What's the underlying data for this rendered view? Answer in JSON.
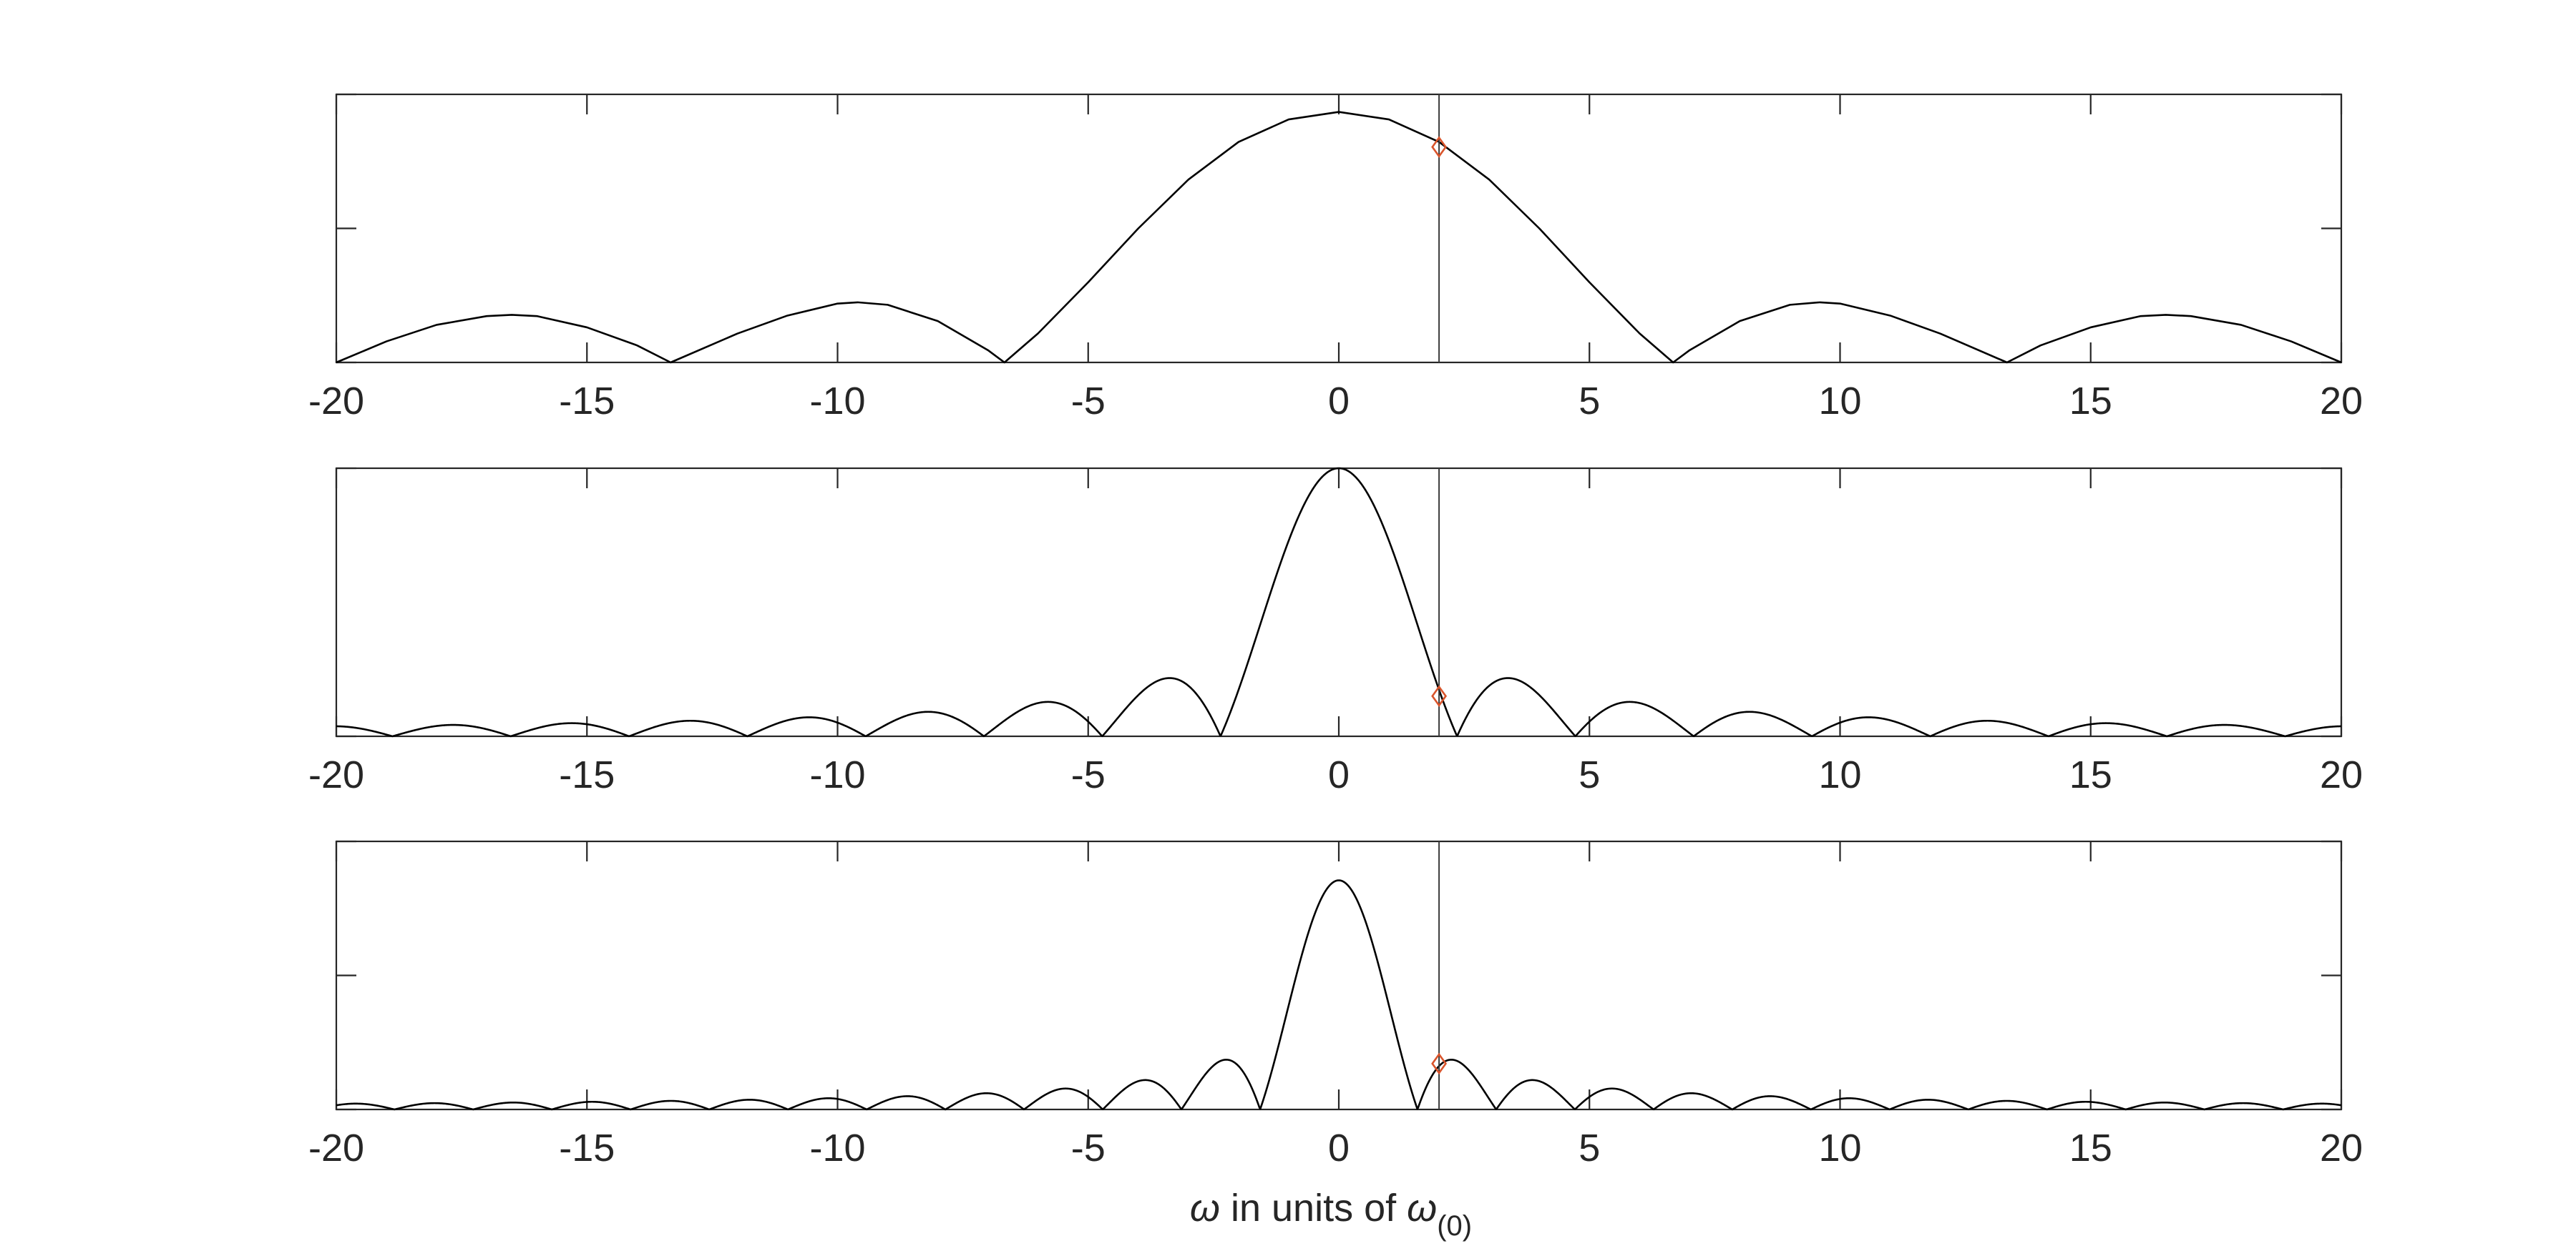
{
  "figure": {
    "xlabel": {
      "omega_symbol": "ω",
      "text": " in units of ",
      "omega_symbol_2": "ω",
      "subscript": "(0)"
    }
  },
  "colors": {
    "curve": "#000000",
    "marker": "#d9542b",
    "axes": "#262626"
  },
  "chart_data": [
    {
      "type": "line",
      "title": "",
      "xlabel": "",
      "ylabel": "",
      "xlim": [
        -20,
        20
      ],
      "ylim": [
        0,
        1.07
      ],
      "xticks": [
        -20,
        -15,
        -10,
        -5,
        0,
        5,
        10,
        15,
        20
      ],
      "xtick_labels": [
        "-20",
        "-15",
        "-10",
        "-5",
        "0",
        "5",
        "10",
        "15",
        "20"
      ],
      "yticks_count": 3,
      "yticks_labeled": false,
      "grid": false,
      "series": [
        {
          "x": [
            -20,
            -19,
            -18,
            -17,
            -16.5,
            -16,
            -15,
            -14,
            -13.33,
            -12,
            -11,
            -10,
            -9.6,
            -9,
            -8,
            -7,
            -6.67,
            -6,
            -5,
            -4,
            -3,
            -2,
            -1,
            0,
            1,
            2,
            3,
            4,
            5,
            6,
            6.67,
            7,
            8,
            9,
            9.6,
            10,
            11,
            12,
            13.33,
            14,
            15,
            16,
            16.5,
            17,
            18,
            19,
            20
          ],
          "y": [
            0,
            0.084,
            0.15,
            0.185,
            0.19,
            0.185,
            0.14,
            0.068,
            0,
            0.115,
            0.187,
            0.235,
            0.24,
            0.23,
            0.165,
            0.049,
            0,
            0.116,
            0.32,
            0.535,
            0.73,
            0.88,
            0.97,
            1.0,
            0.97,
            0.88,
            0.73,
            0.535,
            0.32,
            0.116,
            0,
            0.049,
            0.165,
            0.23,
            0.24,
            0.235,
            0.187,
            0.115,
            0,
            0.068,
            0.14,
            0.185,
            0.19,
            0.185,
            0.15,
            0.084,
            0
          ]
        }
      ],
      "vline_x": 2,
      "marker": {
        "x": 2,
        "y": 0.86,
        "shape": "diamond"
      }
    },
    {
      "type": "line",
      "title": "",
      "xlabel": "",
      "ylabel": "",
      "xlim": [
        -20,
        20
      ],
      "ylim": [
        0,
        1.0
      ],
      "xticks": [
        -20,
        -15,
        -10,
        -5,
        0,
        5,
        10,
        15,
        20
      ],
      "xtick_labels": [
        "-20",
        "-15",
        "-10",
        "-5",
        "0",
        "5",
        "10",
        "15",
        "20"
      ],
      "yticks_count": 2,
      "yticks_labeled": false,
      "grid": false,
      "series": [
        {
          "func": "abs_sinc",
          "first_zero": 2.36,
          "peak": 1.0,
          "x_range": [
            -20,
            20
          ]
        }
      ],
      "vline_x": 2,
      "marker": {
        "x": 2,
        "y": 0.15,
        "shape": "diamond"
      }
    },
    {
      "type": "line",
      "title": "",
      "xlabel": "",
      "ylabel": "",
      "xlim": [
        -20,
        20
      ],
      "ylim": [
        0,
        1.17
      ],
      "xticks": [
        -20,
        -15,
        -10,
        -5,
        0,
        5,
        10,
        15,
        20
      ],
      "xtick_labels": [
        "-20",
        "-15",
        "-10",
        "-5",
        "0",
        "5",
        "10",
        "15",
        "20"
      ],
      "yticks_count": 3,
      "yticks_labeled": false,
      "grid": false,
      "series": [
        {
          "func": "abs_sinc",
          "first_zero": 1.57,
          "peak": 1.0,
          "x_range": [
            -20,
            20
          ]
        }
      ],
      "vline_x": 2,
      "marker": {
        "x": 2,
        "y": 0.2,
        "shape": "diamond"
      }
    }
  ]
}
